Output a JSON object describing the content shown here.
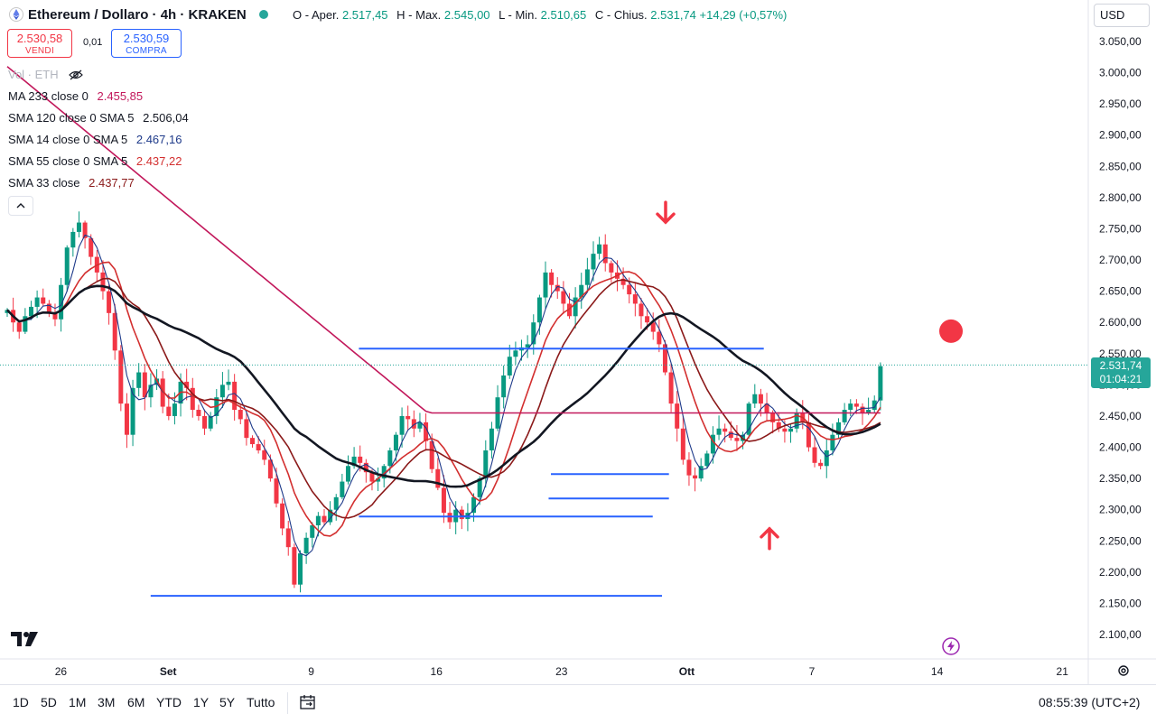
{
  "header": {
    "title": "Ethereum / Dollaro · 4h · KRAKEN",
    "ohlc": {
      "open_label": "O - Aper.",
      "open": "2.517,45",
      "high_label": "H - Max.",
      "high": "2.545,00",
      "low_label": "L - Min.",
      "low": "2.510,65",
      "close_label": "C - Chius.",
      "close": "2.531,74",
      "change": "+14,29 (+0,57%)"
    },
    "sell_price": "2.530,58",
    "sell_label": "VENDI",
    "spread": "0,01",
    "buy_price": "2.530,59",
    "buy_label": "COMPRA",
    "currency": "USD"
  },
  "indicators": {
    "vol_label": "Vol · ETH",
    "lines": [
      {
        "label": "MA 233 close 0",
        "value": "2.455,85",
        "color": "#c2185b"
      },
      {
        "label": "SMA 120 close 0 SMA 5",
        "value": "2.506,04",
        "color": "#131722"
      },
      {
        "label": "SMA 14 close 0 SMA 5",
        "value": "2.467,16",
        "color": "#1e3a8a"
      },
      {
        "label": "SMA 55 close 0 SMA 5",
        "value": "2.437,22",
        "color": "#d32f2f"
      },
      {
        "label": "SMA 33 close",
        "value": "2.437,77",
        "color": "#8b1a1a"
      }
    ]
  },
  "price_tag": {
    "value": "2.531,74",
    "countdown": "01:04:21",
    "color": "#26a69a"
  },
  "bottom": {
    "ranges": [
      "1D",
      "5D",
      "1M",
      "3M",
      "6M",
      "YTD",
      "1Y",
      "5Y",
      "Tutto"
    ],
    "clock": "08:55:39 (UTC+2)"
  },
  "colors": {
    "up": "#089981",
    "down": "#f23645",
    "blue_line": "#2962ff",
    "arrow": "#f23645"
  },
  "chart_data": {
    "type": "candlestick",
    "title": "Ethereum / Dollaro · 4h · KRAKEN",
    "y_ticks": [
      "3.050,00",
      "3.000,00",
      "2.950,00",
      "2.900,00",
      "2.850,00",
      "2.800,00",
      "2.750,00",
      "2.700,00",
      "2.650,00",
      "2.600,00",
      "2.550,00",
      "2.500,00",
      "2.450,00",
      "2.400,00",
      "2.350,00",
      "2.300,00",
      "2.250,00",
      "2.200,00",
      "2.150,00",
      "2.100,00"
    ],
    "y_tick_values": [
      3050,
      3000,
      2950,
      2900,
      2850,
      2800,
      2750,
      2700,
      2650,
      2600,
      2550,
      2500,
      2450,
      2400,
      2350,
      2300,
      2250,
      2200,
      2150,
      2100
    ],
    "ylim": [
      2075,
      3085
    ],
    "x_ticks": [
      {
        "label": "26",
        "bar": 18
      },
      {
        "label": "Set",
        "bar": 54
      },
      {
        "label": "9",
        "bar": 102
      },
      {
        "label": "16",
        "bar": 144
      },
      {
        "label": "23",
        "bar": 186
      },
      {
        "label": "Ott",
        "bar": 228
      },
      {
        "label": "7",
        "bar": 270
      },
      {
        "label": "14",
        "bar": 312
      },
      {
        "label": "21",
        "bar": 354
      }
    ],
    "bar_count_visible": 380,
    "closes": [
      2620,
      2600,
      2585,
      2610,
      2625,
      2640,
      2630,
      2615,
      2605,
      2660,
      2720,
      2745,
      2760,
      2735,
      2705,
      2680,
      2650,
      2615,
      2555,
      2470,
      2420,
      2495,
      2520,
      2480,
      2500,
      2510,
      2465,
      2450,
      2470,
      2505,
      2495,
      2460,
      2450,
      2430,
      2450,
      2480,
      2500,
      2505,
      2460,
      2445,
      2415,
      2405,
      2395,
      2380,
      2350,
      2310,
      2270,
      2240,
      2180,
      2230,
      2255,
      2275,
      2290,
      2280,
      2300,
      2320,
      2345,
      2370,
      2385,
      2375,
      2360,
      2345,
      2350,
      2370,
      2395,
      2420,
      2450,
      2445,
      2430,
      2440,
      2410,
      2365,
      2335,
      2295,
      2280,
      2300,
      2285,
      2295,
      2320,
      2350,
      2395,
      2430,
      2480,
      2515,
      2545,
      2555,
      2560,
      2565,
      2600,
      2640,
      2680,
      2660,
      2650,
      2630,
      2610,
      2640,
      2660,
      2685,
      2710,
      2725,
      2695,
      2680,
      2670,
      2660,
      2645,
      2630,
      2610,
      2600,
      2585,
      2565,
      2520,
      2470,
      2430,
      2380,
      2355,
      2350,
      2370,
      2390,
      2420,
      2430,
      2425,
      2415,
      2410,
      2420,
      2470,
      2485,
      2470,
      2455,
      2440,
      2430,
      2425,
      2430,
      2455,
      2440,
      2400,
      2375,
      2370,
      2395,
      2420,
      2440,
      2460,
      2470,
      2465,
      2455,
      2460,
      2475,
      2530
    ],
    "ma233_value": 2455.85,
    "sma120_value": 2506.04,
    "sma14_value": 2467.16,
    "sma55_value": 2437.22,
    "sma33_value": 2437.77,
    "horizontal_lines": [
      {
        "y": 2558,
        "x_from_bar": 152,
        "x_to_bar": 327
      },
      {
        "y": 2357,
        "x_from_bar": 235,
        "x_to_bar": 286
      },
      {
        "y": 2318,
        "x_from_bar": 234,
        "x_to_bar": 286
      },
      {
        "y": 2289,
        "x_from_bar": 152,
        "x_to_bar": 279
      },
      {
        "y": 2162,
        "x_from_bar": 62,
        "x_to_bar": 283
      }
    ],
    "annotations": [
      {
        "type": "arrow-down",
        "near_value": 2775
      },
      {
        "type": "arrow-up",
        "near_value": 2255
      },
      {
        "type": "dot",
        "near_value": 2586
      }
    ]
  }
}
